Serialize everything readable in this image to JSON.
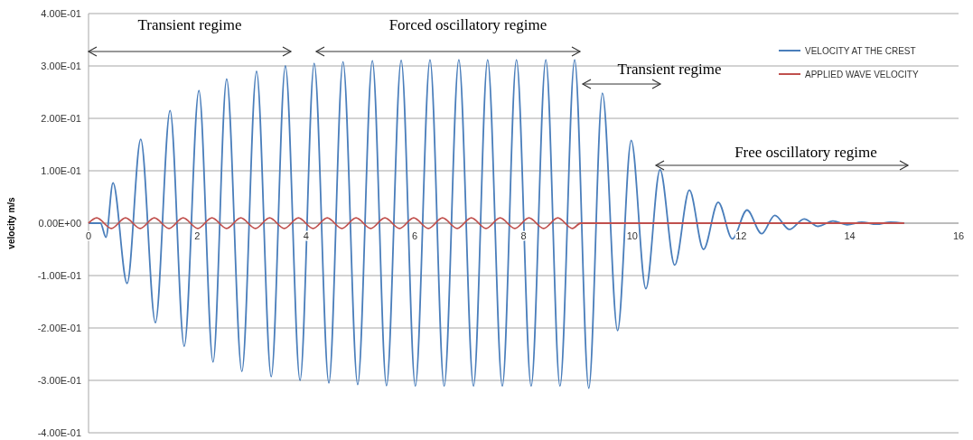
{
  "chart_data": {
    "type": "line",
    "ylabel": "velocity m/s",
    "xlim": [
      0,
      16
    ],
    "xticks": [
      0,
      2,
      4,
      6,
      8,
      10,
      12,
      14,
      16
    ],
    "ylim": [
      -0.4,
      0.4
    ],
    "yticks": [
      {
        "value": -0.4,
        "label": "-4.00E-01"
      },
      {
        "value": -0.3,
        "label": "-3.00E-01"
      },
      {
        "value": -0.2,
        "label": "-2.00E-01"
      },
      {
        "value": -0.1,
        "label": "-1.00E-01"
      },
      {
        "value": 0,
        "label": "0.00E+00"
      },
      {
        "value": 0.1,
        "label": "1.00E-01"
      },
      {
        "value": 0.2,
        "label": "2.00E-01"
      },
      {
        "value": 0.3,
        "label": "3.00E-01"
      },
      {
        "value": 0.4,
        "label": "4.00E-01"
      }
    ],
    "grid": "y",
    "legend": "top right",
    "marker": "none",
    "line_style": "solid",
    "annotations": [
      "Transient regime",
      "Forced oscillatory regime",
      "Transient regime",
      "Free oscillatory regime"
    ],
    "series": [
      {
        "name": "VELOCITY AT THE CREST",
        "color": "#4a7ebb",
        "x": [
          0,
          0.22,
          0.32,
          0.45,
          0.71,
          0.96,
          1.23,
          1.5,
          1.76,
          2.03,
          2.29,
          2.54,
          2.82,
          3.09,
          3.36,
          3.62,
          3.89,
          4.15,
          4.42,
          4.68,
          4.95,
          5.22,
          5.48,
          5.75,
          6.01,
          6.28,
          6.54,
          6.81,
          7.08,
          7.34,
          7.61,
          7.87,
          8.14,
          8.41,
          8.67,
          8.94,
          9.2,
          9.45,
          9.73,
          9.98,
          10.25,
          10.51,
          10.78,
          11.05,
          11.31,
          11.58,
          11.84,
          12.11,
          12.38,
          12.62,
          12.89,
          13.16,
          13.42,
          13.69,
          13.95,
          14.22,
          14.49,
          14.75,
          15.0
        ],
        "values": [
          0,
          0,
          -0.027,
          0.077,
          -0.115,
          0.16,
          -0.19,
          0.215,
          -0.235,
          0.253,
          -0.265,
          0.275,
          -0.283,
          0.29,
          -0.293,
          0.3,
          -0.3,
          0.305,
          -0.305,
          0.308,
          -0.308,
          0.31,
          -0.31,
          0.311,
          -0.311,
          0.312,
          -0.311,
          0.312,
          -0.311,
          0.312,
          -0.311,
          0.312,
          -0.311,
          0.312,
          -0.311,
          0.312,
          -0.315,
          0.248,
          -0.205,
          0.158,
          -0.125,
          0.102,
          -0.08,
          0.063,
          -0.05,
          0.04,
          -0.03,
          0.025,
          -0.02,
          0.015,
          -0.012,
          0.008,
          -0.006,
          0.004,
          -0.003,
          0.002,
          -0.002,
          0.002,
          0
        ]
      },
      {
        "name": "APPLIED WAVE VELOCITY",
        "color": "#c0504d",
        "x": [
          0,
          0.15,
          0.42,
          0.68,
          0.95,
          1.21,
          1.48,
          1.74,
          2.01,
          2.27,
          2.54,
          2.8,
          3.07,
          3.33,
          3.6,
          3.86,
          4.13,
          4.39,
          4.66,
          4.92,
          5.19,
          5.45,
          5.72,
          5.98,
          6.25,
          6.51,
          6.78,
          7.04,
          7.31,
          7.57,
          7.84,
          8.1,
          8.37,
          8.63,
          8.9,
          9.05,
          15.0
        ],
        "values": [
          0,
          0.01,
          -0.01,
          0.01,
          -0.01,
          0.01,
          -0.01,
          0.01,
          -0.01,
          0.01,
          -0.01,
          0.01,
          -0.01,
          0.01,
          -0.01,
          0.01,
          -0.01,
          0.01,
          -0.01,
          0.01,
          -0.01,
          0.01,
          -0.01,
          0.01,
          -0.01,
          0.01,
          -0.01,
          0.01,
          -0.01,
          0.01,
          -0.01,
          0.01,
          -0.01,
          0.01,
          -0.01,
          0,
          0
        ]
      }
    ]
  }
}
